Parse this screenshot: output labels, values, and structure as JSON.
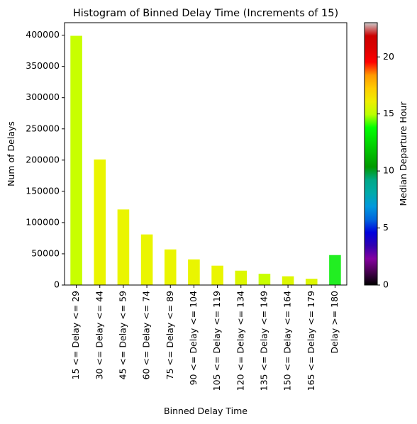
{
  "chart_data": {
    "type": "bar",
    "title": "Histogram of Binned Delay Time (Increments of 15)",
    "xlabel": "Binned Delay Time",
    "ylabel": "Num of Delays",
    "ylim": [
      0,
      420000
    ],
    "yticks": [
      0,
      50000,
      100000,
      150000,
      200000,
      250000,
      300000,
      350000,
      400000
    ],
    "categories": [
      "15 <= Delay <= 29",
      "30 <= Delay <= 44",
      "45 <= Delay <= 59",
      "60 <= Delay <= 74",
      "75 <= Delay <= 89",
      "90 <= Delay <= 104",
      "105 <= Delay <= 119",
      "120 <= Delay <= 134",
      "135 <= Delay <= 149",
      "150 <= Delay <= 164",
      "165 <= Delay <= 179",
      "Delay >= 180"
    ],
    "values": [
      399000,
      201000,
      121000,
      81000,
      57000,
      41000,
      31000,
      23000,
      18000,
      14000,
      10000,
      48000
    ],
    "bar_colors": [
      "#c8ff00",
      "#eaf500",
      "#eaf500",
      "#eaf500",
      "#eaf500",
      "#eaf500",
      "#eaf500",
      "#ddf700",
      "#c8ff00",
      "#ddf700",
      "#ddf700",
      "#22ee22"
    ],
    "grid": false,
    "legend": "none",
    "colorbar": {
      "label": "Median Departure Hour",
      "colormap": "nipy_spectral",
      "range": [
        0,
        23
      ],
      "ticks": [
        0,
        5,
        10,
        15,
        20
      ]
    }
  }
}
